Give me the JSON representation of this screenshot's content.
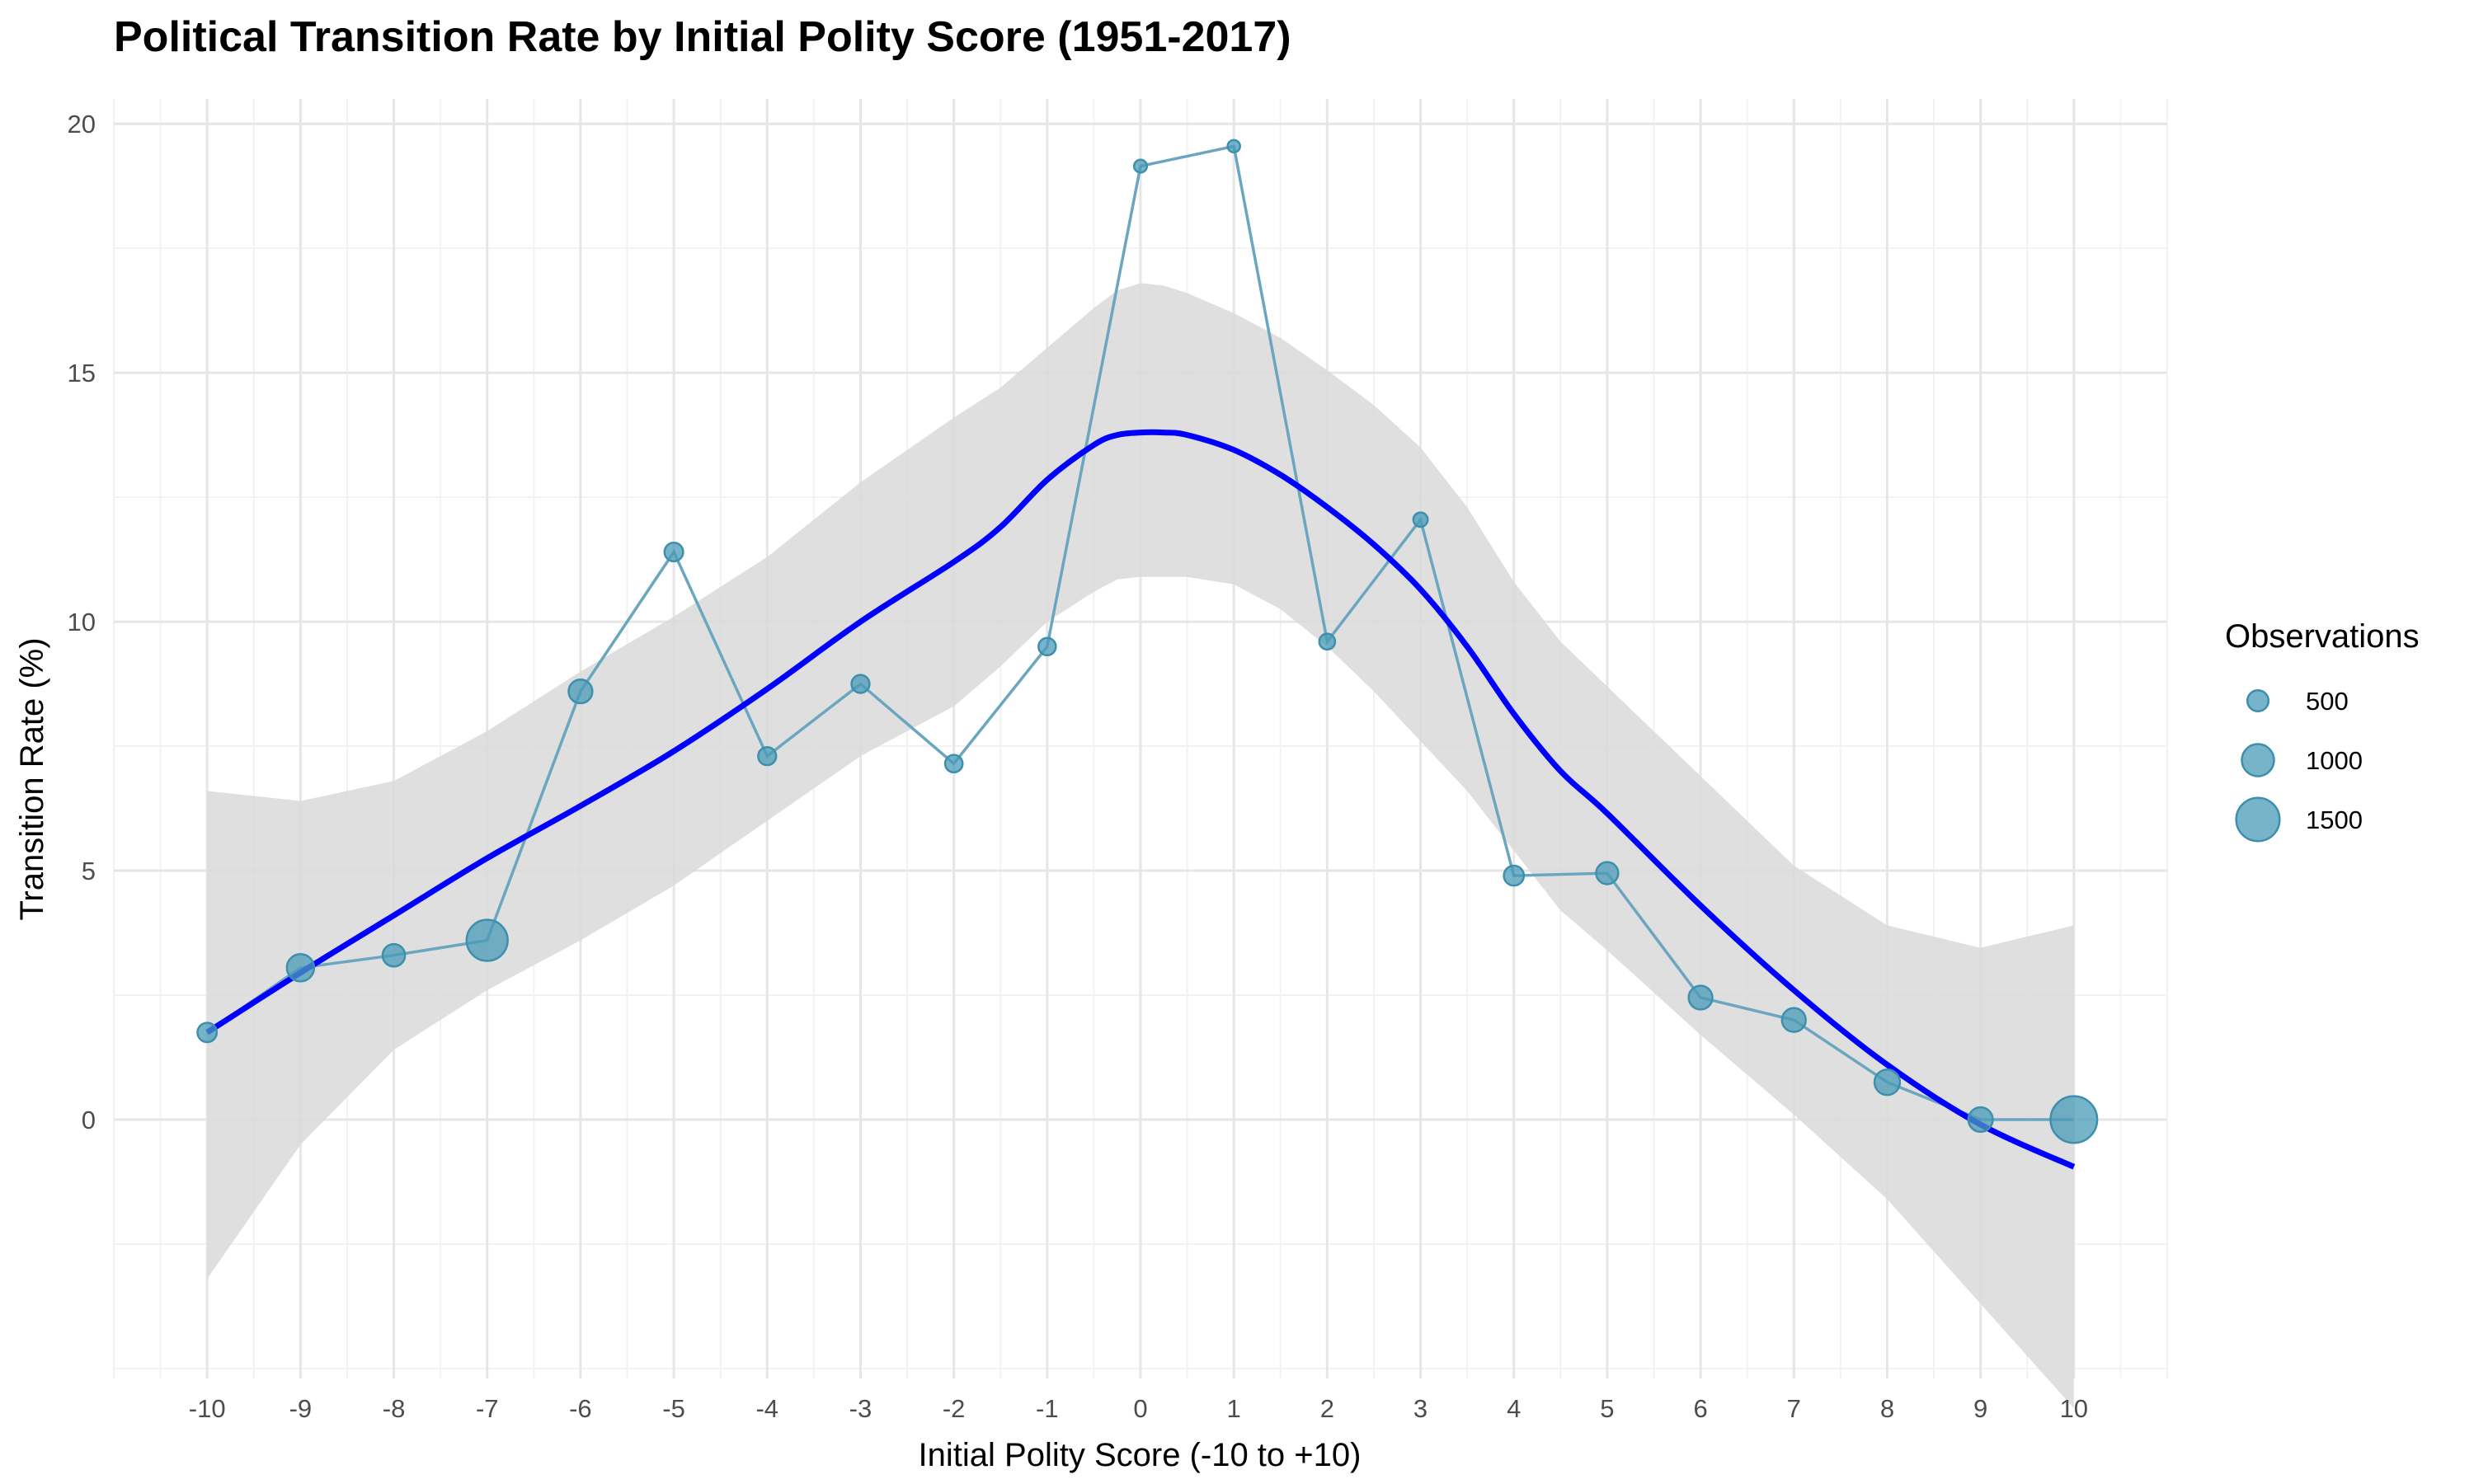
{
  "chart_data": {
    "type": "line",
    "title": "Political Transition Rate by Initial Polity Score (1951-2017)",
    "xlabel": "Initial Polity Score (-10 to +10)",
    "ylabel": "Transition Rate (%)",
    "xlim": [
      -11,
      11
    ],
    "ylim": [
      -5.2,
      20.5
    ],
    "grid": true,
    "x_ticks": [
      -10,
      -9,
      -8,
      -7,
      -6,
      -5,
      -4,
      -3,
      -2,
      -1,
      0,
      1,
      2,
      3,
      4,
      5,
      6,
      7,
      8,
      9,
      10
    ],
    "x_tick_labels": [
      "-10",
      "-9",
      "-8",
      "-7",
      "-6",
      "-5",
      "-4",
      "-3",
      "-2",
      "-1",
      "0",
      "1",
      "2",
      "3",
      "4",
      "5",
      "6",
      "7",
      "8",
      "9",
      "10"
    ],
    "y_ticks": [
      0,
      5,
      10,
      15,
      20
    ],
    "y_tick_labels": [
      "0",
      "5",
      "10",
      "15",
      "20"
    ],
    "point_color": "#4a9bb8",
    "line_color": "#6aa6bf",
    "smooth_color": "#0000ff",
    "ribbon_color": "#d9d9d9",
    "observed": {
      "x": [
        -10,
        -9,
        -8,
        -7,
        -6,
        -5,
        -4,
        -3,
        -2,
        -1,
        0,
        1,
        2,
        3,
        4,
        5,
        6,
        7,
        8,
        9,
        10
      ],
      "y": [
        1.75,
        3.05,
        3.3,
        3.6,
        8.6,
        11.4,
        7.3,
        8.75,
        7.15,
        9.5,
        19.15,
        19.55,
        9.6,
        12.05,
        4.9,
        4.95,
        2.45,
        2.0,
        0.75,
        0.0,
        0.0
      ],
      "observations": [
        420,
        780,
        560,
        1400,
        620,
        390,
        360,
        360,
        340,
        330,
        130,
        110,
        270,
        200,
        450,
        550,
        620,
        620,
        700,
        650,
        1650
      ]
    },
    "smooth": {
      "x": [
        -10,
        -9,
        -8,
        -7,
        -6,
        -5,
        -4,
        -3,
        -2,
        -1.5,
        -1,
        -0.5,
        -0.25,
        0,
        0.25,
        0.5,
        1,
        1.5,
        2,
        2.5,
        3,
        3.5,
        4,
        4.5,
        5,
        6,
        7,
        8,
        9,
        10
      ],
      "y": [
        1.75,
        2.95,
        4.1,
        5.25,
        6.3,
        7.4,
        8.65,
        10.0,
        11.2,
        11.9,
        12.85,
        13.55,
        13.75,
        13.8,
        13.8,
        13.75,
        13.45,
        12.95,
        12.3,
        11.55,
        10.65,
        9.5,
        8.15,
        7.0,
        6.15,
        4.3,
        2.6,
        1.1,
        -0.1,
        -0.95
      ],
      "lower": [
        -3.2,
        -0.5,
        1.4,
        2.6,
        3.6,
        4.7,
        6.0,
        7.3,
        8.3,
        9.1,
        10.0,
        10.6,
        10.85,
        10.9,
        10.9,
        10.9,
        10.75,
        10.25,
        9.5,
        8.6,
        7.6,
        6.6,
        5.4,
        4.2,
        3.4,
        1.7,
        0.1,
        -1.6,
        -3.7,
        -5.8
      ],
      "upper": [
        6.6,
        6.4,
        6.8,
        7.8,
        9.0,
        10.1,
        11.3,
        12.8,
        14.1,
        14.7,
        15.5,
        16.3,
        16.65,
        16.8,
        16.75,
        16.6,
        16.2,
        15.7,
        15.05,
        14.35,
        13.5,
        12.3,
        10.8,
        9.6,
        8.7,
        6.9,
        5.1,
        3.9,
        3.45,
        3.9
      ]
    },
    "legend": {
      "title": "Observations",
      "placement": "right",
      "entries": [
        {
          "label": "500",
          "value": 500
        },
        {
          "label": "1000",
          "value": 1000
        },
        {
          "label": "1500",
          "value": 1500
        }
      ]
    }
  }
}
